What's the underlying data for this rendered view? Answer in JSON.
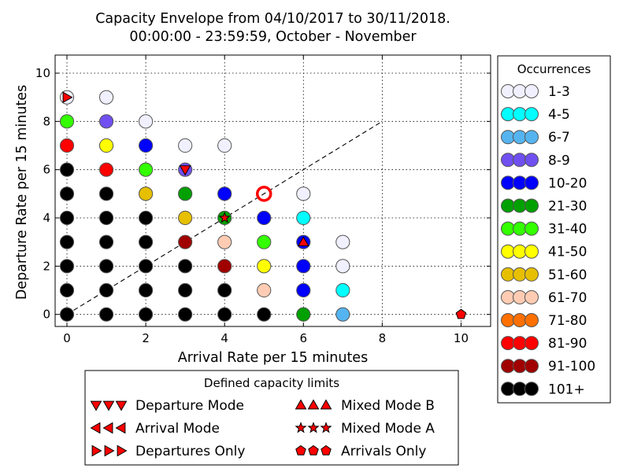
{
  "chart_data": {
    "type": "scatter",
    "title_line1": "Capacity Envelope from 04/10/2017 to 30/11/2018.",
    "title_line2": "00:00:00 - 23:59:59, October - November",
    "xlabel": "Arrival Rate per 15 minutes",
    "ylabel": "Departure Rate per 15 minutes",
    "xlim": [
      -0.3,
      10.75
    ],
    "ylim": [
      -0.5,
      10.75
    ],
    "xticks": [
      "0",
      "2",
      "4",
      "6",
      "8",
      "10"
    ],
    "yticks": [
      "0",
      "2",
      "4",
      "6",
      "8",
      "10"
    ],
    "grid": true,
    "occurrence_legend": {
      "title": "Occurrences",
      "placement": "right",
      "bins": [
        {
          "label": "1-3",
          "color": "#f0f0ff"
        },
        {
          "label": "4-5",
          "color": "#00ffff"
        },
        {
          "label": "6-7",
          "color": "#55b4f0"
        },
        {
          "label": "8-9",
          "color": "#7050f0"
        },
        {
          "label": "10-20",
          "color": "#0000ff"
        },
        {
          "label": "21-30",
          "color": "#00a000"
        },
        {
          "label": "31-40",
          "color": "#33ff00"
        },
        {
          "label": "41-50",
          "color": "#ffff00"
        },
        {
          "label": "51-60",
          "color": "#e6bf00"
        },
        {
          "label": "61-70",
          "color": "#ffccb3"
        },
        {
          "label": "71-80",
          "color": "#ff7000"
        },
        {
          "label": "81-90",
          "color": "#ff0000"
        },
        {
          "label": "91-100",
          "color": "#a00000"
        },
        {
          "label": "101+",
          "color": "#000000"
        }
      ]
    },
    "points": [
      {
        "x": 0,
        "y": 0,
        "bin": 13
      },
      {
        "x": 1,
        "y": 0,
        "bin": 13
      },
      {
        "x": 2,
        "y": 0,
        "bin": 13
      },
      {
        "x": 3,
        "y": 0,
        "bin": 13
      },
      {
        "x": 4,
        "y": 0,
        "bin": 13
      },
      {
        "x": 5,
        "y": 0,
        "bin": 13
      },
      {
        "x": 6,
        "y": 0,
        "bin": 5
      },
      {
        "x": 7,
        "y": 0,
        "bin": 2
      },
      {
        "x": 0,
        "y": 1,
        "bin": 13
      },
      {
        "x": 1,
        "y": 1,
        "bin": 13
      },
      {
        "x": 2,
        "y": 1,
        "bin": 13
      },
      {
        "x": 3,
        "y": 1,
        "bin": 13
      },
      {
        "x": 4,
        "y": 1,
        "bin": 13
      },
      {
        "x": 5,
        "y": 1,
        "bin": 9
      },
      {
        "x": 6,
        "y": 1,
        "bin": 4
      },
      {
        "x": 7,
        "y": 1,
        "bin": 1
      },
      {
        "x": 0,
        "y": 2,
        "bin": 13
      },
      {
        "x": 1,
        "y": 2,
        "bin": 13
      },
      {
        "x": 2,
        "y": 2,
        "bin": 13
      },
      {
        "x": 3,
        "y": 2,
        "bin": 13
      },
      {
        "x": 4,
        "y": 2,
        "bin": 12
      },
      {
        "x": 5,
        "y": 2,
        "bin": 7
      },
      {
        "x": 6,
        "y": 2,
        "bin": 4
      },
      {
        "x": 7,
        "y": 2,
        "bin": 0
      },
      {
        "x": 0,
        "y": 3,
        "bin": 13
      },
      {
        "x": 1,
        "y": 3,
        "bin": 13
      },
      {
        "x": 2,
        "y": 3,
        "bin": 13
      },
      {
        "x": 3,
        "y": 3,
        "bin": 12
      },
      {
        "x": 4,
        "y": 3,
        "bin": 9
      },
      {
        "x": 5,
        "y": 3,
        "bin": 6
      },
      {
        "x": 6,
        "y": 3,
        "bin": 4
      },
      {
        "x": 7,
        "y": 3,
        "bin": 0
      },
      {
        "x": 0,
        "y": 4,
        "bin": 13
      },
      {
        "x": 1,
        "y": 4,
        "bin": 13
      },
      {
        "x": 2,
        "y": 4,
        "bin": 13
      },
      {
        "x": 3,
        "y": 4,
        "bin": 8
      },
      {
        "x": 4,
        "y": 4,
        "bin": 5
      },
      {
        "x": 5,
        "y": 4,
        "bin": 4
      },
      {
        "x": 6,
        "y": 4,
        "bin": 1
      },
      {
        "x": 0,
        "y": 5,
        "bin": 13
      },
      {
        "x": 1,
        "y": 5,
        "bin": 13
      },
      {
        "x": 2,
        "y": 5,
        "bin": 8
      },
      {
        "x": 3,
        "y": 5,
        "bin": 5
      },
      {
        "x": 4,
        "y": 5,
        "bin": 4
      },
      {
        "x": 6,
        "y": 5,
        "bin": 0
      },
      {
        "x": 0,
        "y": 6,
        "bin": 13
      },
      {
        "x": 1,
        "y": 6,
        "bin": 11
      },
      {
        "x": 2,
        "y": 6,
        "bin": 6
      },
      {
        "x": 3,
        "y": 6,
        "bin": 3
      },
      {
        "x": 0,
        "y": 7,
        "bin": 11
      },
      {
        "x": 1,
        "y": 7,
        "bin": 7
      },
      {
        "x": 2,
        "y": 7,
        "bin": 4
      },
      {
        "x": 3,
        "y": 7,
        "bin": 0
      },
      {
        "x": 4,
        "y": 7,
        "bin": 0
      },
      {
        "x": 0,
        "y": 8,
        "bin": 6
      },
      {
        "x": 1,
        "y": 8,
        "bin": 3
      },
      {
        "x": 2,
        "y": 8,
        "bin": 0
      },
      {
        "x": 0,
        "y": 9,
        "bin": 0
      },
      {
        "x": 1,
        "y": 9,
        "bin": 0
      }
    ],
    "highlight": {
      "x": 5,
      "y": 5,
      "color": "#ff0000"
    },
    "reference_line": {
      "from": [
        0,
        0
      ],
      "to": [
        8,
        8
      ],
      "style": "dashed"
    },
    "capacity_markers": [
      {
        "mode": "Departure Mode",
        "shape": "triangle-down",
        "x": 3,
        "y": 6
      },
      {
        "mode": "Departures Only",
        "shape": "triangle-right",
        "x": 0,
        "y": 9
      },
      {
        "mode": "Mixed Mode B",
        "shape": "triangle-up",
        "x": 6,
        "y": 3
      },
      {
        "mode": "Mixed Mode A",
        "shape": "star",
        "x": 4,
        "y": 4
      },
      {
        "mode": "Arrivals Only",
        "shape": "pentagon",
        "x": 10,
        "y": 0
      }
    ],
    "capacity_legend": {
      "title": "Defined capacity limits",
      "placement": "bottom",
      "marker_color": "#ff0000",
      "items": [
        {
          "label": "Departure Mode",
          "shape": "triangle-down"
        },
        {
          "label": "Mixed Mode B",
          "shape": "triangle-up"
        },
        {
          "label": "Arrival Mode",
          "shape": "triangle-left"
        },
        {
          "label": "Mixed Mode A",
          "shape": "star"
        },
        {
          "label": "Departures Only",
          "shape": "triangle-right"
        },
        {
          "label": "Arrivals Only",
          "shape": "pentagon"
        }
      ]
    }
  }
}
